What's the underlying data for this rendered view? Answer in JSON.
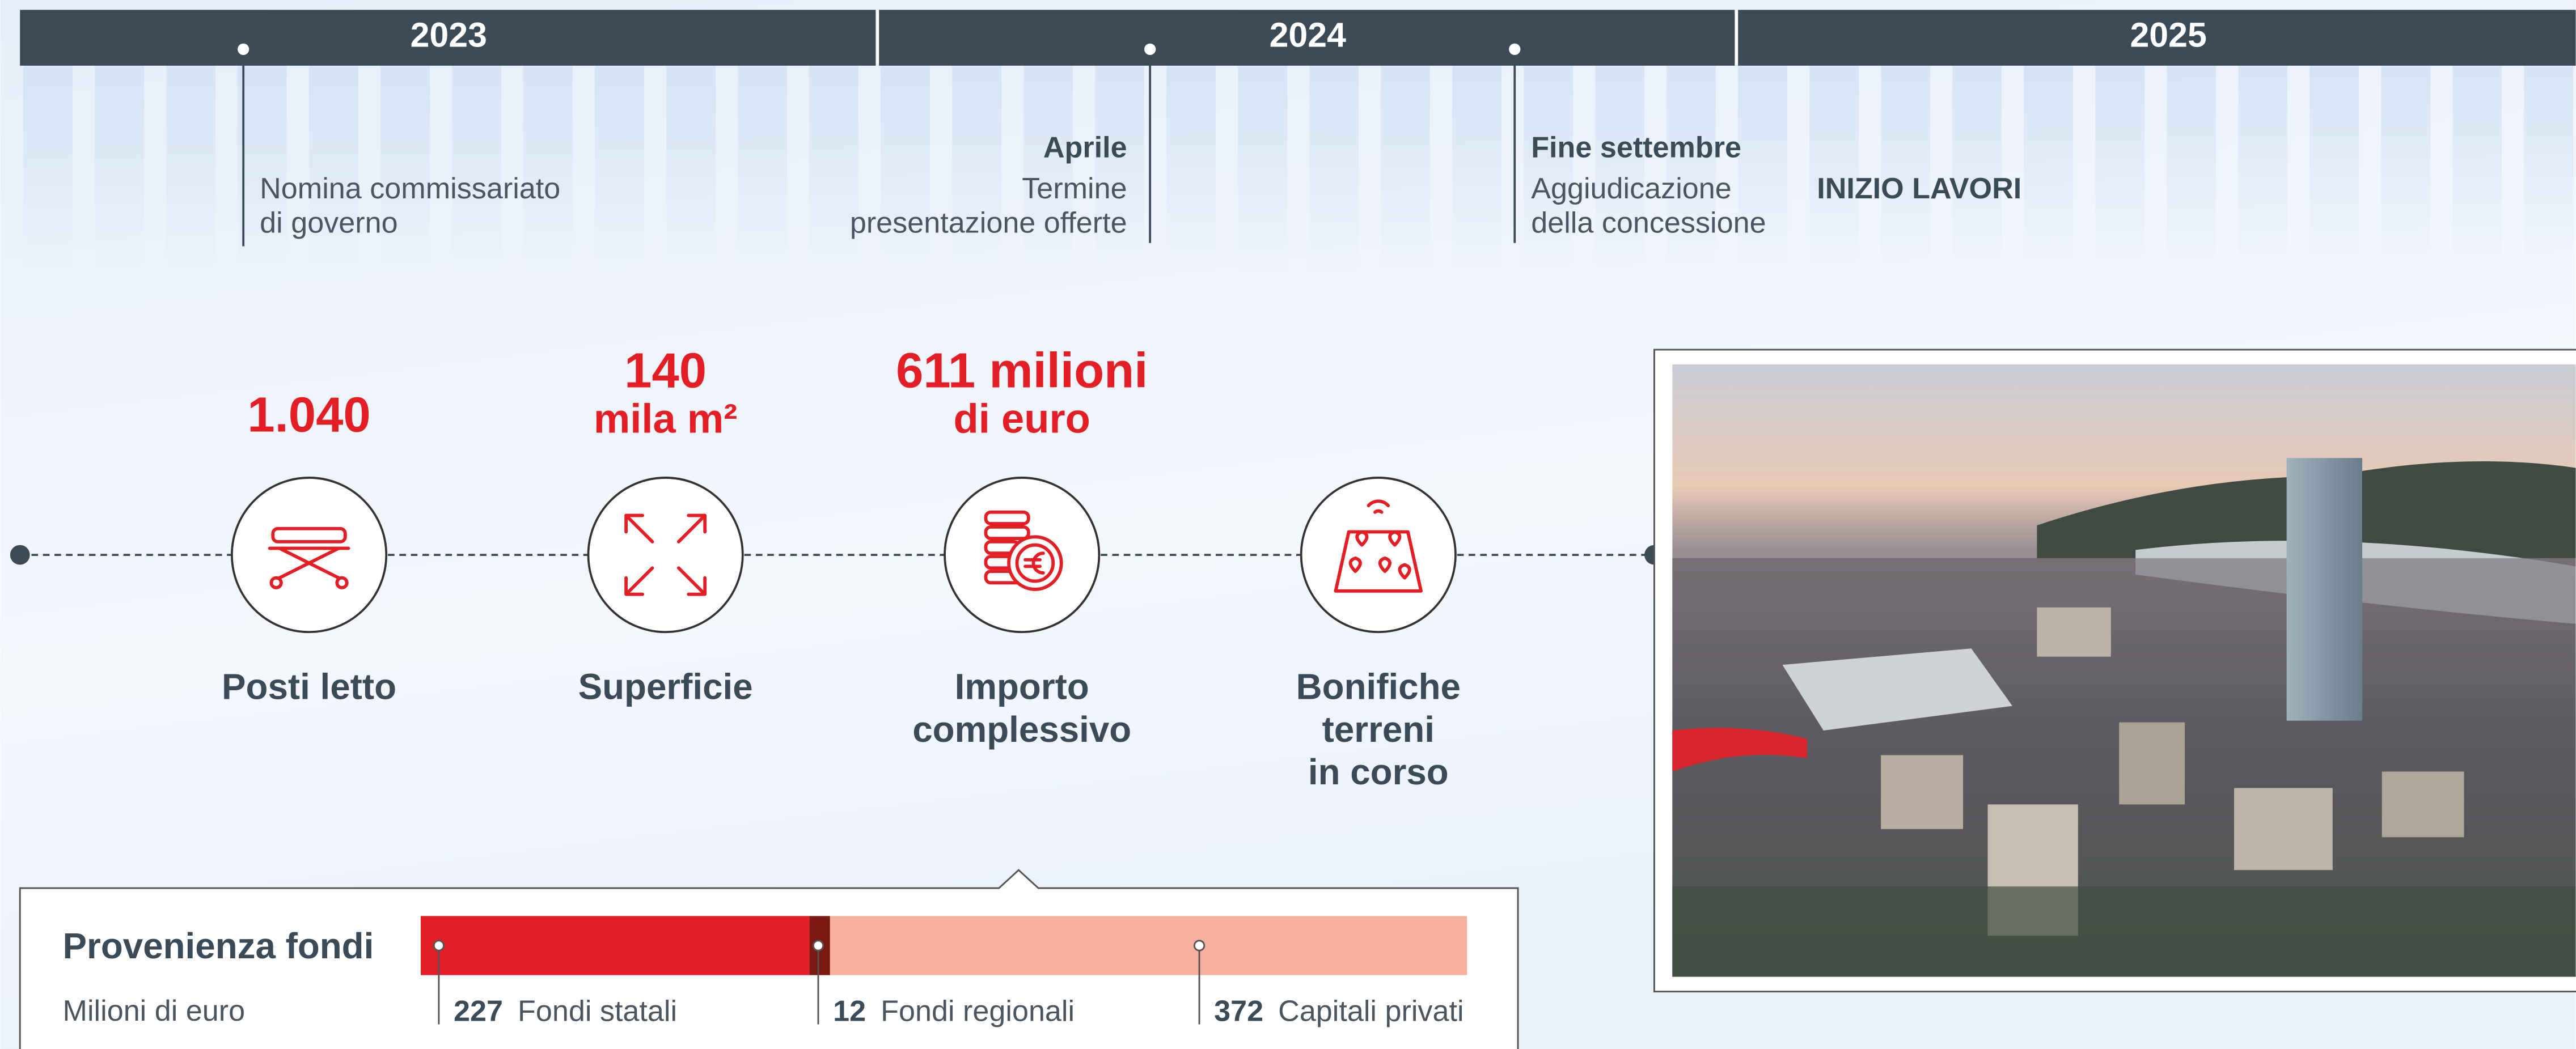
{
  "timeline": {
    "years": [
      "2023",
      "2024",
      "2025"
    ],
    "events": [
      {
        "lines": [
          "Nomina commissariato",
          "di governo"
        ]
      },
      {
        "title": "Aprile",
        "lines": [
          "Termine",
          "presentazione offerte"
        ]
      },
      {
        "title": "Fine settembre",
        "lines": [
          "Aggiudicazione",
          "della concessione"
        ]
      },
      {
        "title": "INIZIO LAVORI"
      }
    ]
  },
  "stats": [
    {
      "value_lines": [
        "1.040"
      ],
      "label_lines": [
        "Posti letto"
      ]
    },
    {
      "value_lines": [
        "140",
        "mila m²"
      ],
      "label_lines": [
        "Superficie"
      ]
    },
    {
      "value_lines": [
        "611 milioni",
        "di euro"
      ],
      "label_lines": [
        "Importo",
        "complessivo"
      ]
    },
    {
      "label_lines": [
        "Bonifiche",
        "terreni",
        "in corso"
      ]
    }
  ],
  "funds": {
    "title": "Provenienza fondi",
    "unit": "Milioni di euro",
    "segments": [
      {
        "name": "Fondi statali",
        "value": 227,
        "color": "#e31e24"
      },
      {
        "name": "Fondi regionali",
        "value": 12,
        "color": "#7a1a12"
      },
      {
        "name": "Capitali privati",
        "value": 372,
        "color": "#f5b09b"
      }
    ]
  }
}
